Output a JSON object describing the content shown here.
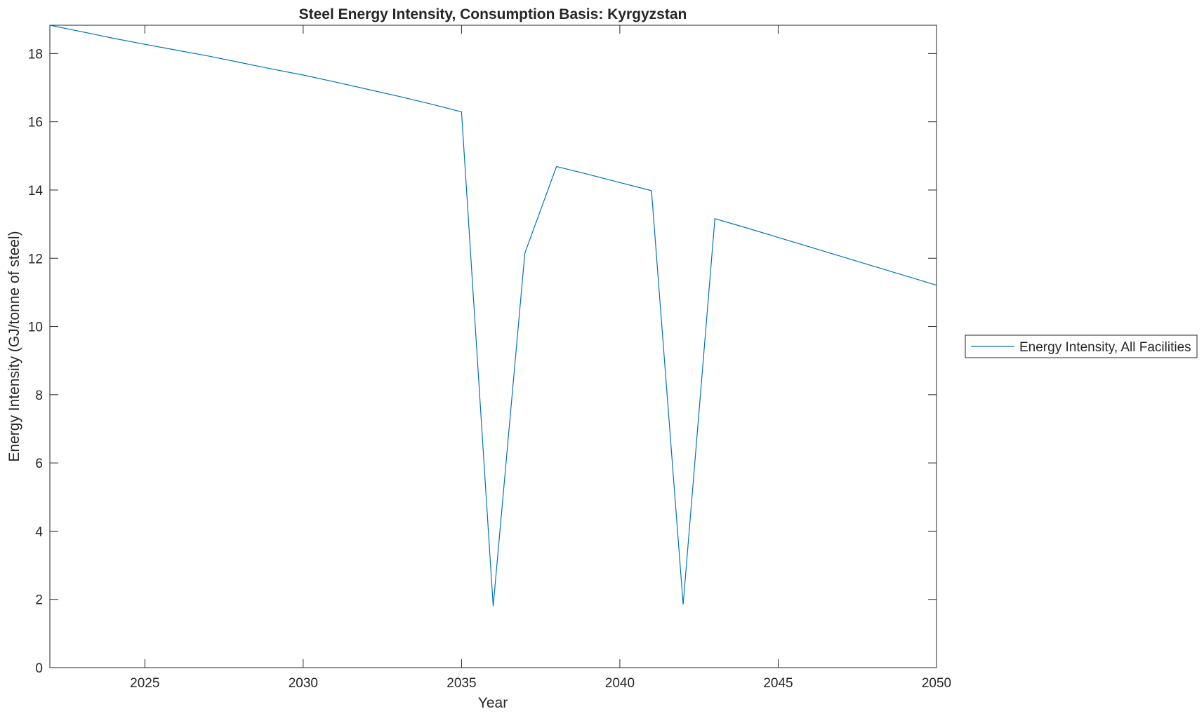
{
  "chart_data": {
    "type": "line",
    "title": "Steel Energy Intensity, Consumption Basis: Kyrgyzstan",
    "xlabel": "Year",
    "ylabel": "Energy Intensity (GJ/tonne of steel)",
    "xlim": [
      2022,
      2050
    ],
    "ylim": [
      0,
      18.83
    ],
    "xticks": [
      2025,
      2030,
      2035,
      2040,
      2045,
      2050
    ],
    "yticks": [
      0,
      2,
      4,
      6,
      8,
      10,
      12,
      14,
      16,
      18
    ],
    "grid": false,
    "legend_position": "outside-right",
    "x": [
      2022,
      2023,
      2024,
      2025,
      2026,
      2027,
      2028,
      2029,
      2030,
      2031,
      2032,
      2033,
      2034,
      2035,
      2036,
      2037,
      2038,
      2039,
      2040,
      2041,
      2042,
      2043,
      2044,
      2045,
      2046,
      2047,
      2048,
      2049,
      2050
    ],
    "series": [
      {
        "name": "Energy Intensity, All Facilities",
        "color": "#0072BD",
        "values": [
          18.83,
          18.64,
          18.45,
          18.27,
          18.1,
          17.93,
          17.74,
          17.55,
          17.37,
          17.17,
          16.96,
          16.75,
          16.53,
          16.29,
          1.8,
          12.15,
          14.69,
          14.46,
          14.22,
          13.98,
          1.85,
          13.16,
          12.89,
          12.61,
          12.33,
          12.05,
          11.77,
          11.49,
          11.21
        ]
      }
    ]
  }
}
